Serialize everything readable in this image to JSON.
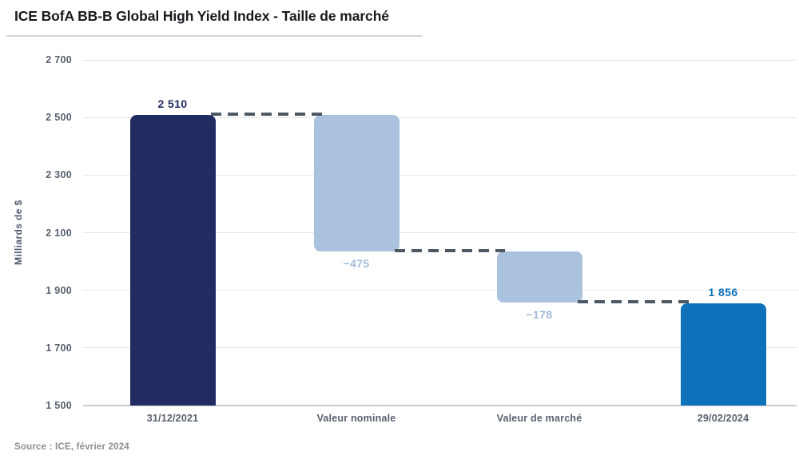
{
  "page": {
    "title": "ICE BofA BB-B Global High Yield Index - Taille de marché",
    "source": "Source : ICE, février 2024"
  },
  "chart_data": {
    "type": "bar",
    "subtype": "waterfall",
    "title": "ICE BofA BB-B Global High Yield Index - Taille de marché",
    "ylabel": "Milliards de $",
    "xlabel": "",
    "ylim": [
      1500,
      2700
    ],
    "grid": true,
    "legend": false,
    "yticks": [
      {
        "value": 2700,
        "label": "2 700"
      },
      {
        "value": 2500,
        "label": "2 500"
      },
      {
        "value": 2300,
        "label": "2 300"
      },
      {
        "value": 2100,
        "label": "2 100"
      },
      {
        "value": 1900,
        "label": "1 900"
      },
      {
        "value": 1700,
        "label": "1 700"
      },
      {
        "value": 1500,
        "label": "1 500"
      }
    ],
    "categories": [
      "31/12/2021",
      "Valeur nominale",
      "Valeur de marché",
      "29/02/2024"
    ],
    "bars": [
      {
        "category": "31/12/2021",
        "role": "total",
        "start": 1500,
        "end": 2510,
        "value": 2510,
        "value_label": "2 510",
        "label_position": "above",
        "color": "#212c62",
        "label_color": "#212c62"
      },
      {
        "category": "Valeur nominale",
        "role": "decrease",
        "start": 2510,
        "end": 2035,
        "value": -475,
        "value_label": "−475",
        "label_position": "below",
        "color": "#aac2dd",
        "label_color": "#a2bcda"
      },
      {
        "category": "Valeur de marché",
        "role": "decrease",
        "start": 2035,
        "end": 1857,
        "value": -178,
        "value_label": "−178",
        "label_position": "below",
        "color": "#aac2dd",
        "label_color": "#a2bcda"
      },
      {
        "category": "29/02/2024",
        "role": "total",
        "start": 1500,
        "end": 1856,
        "value": 1856,
        "value_label": "1 856",
        "label_position": "above",
        "color": "#0d72ba",
        "label_color": "#0d72ba"
      }
    ],
    "connectors": [
      {
        "level": 2510,
        "from_bar": 0,
        "to_bar": 1
      },
      {
        "level": 2035,
        "from_bar": 1,
        "to_bar": 2
      },
      {
        "level": 1857,
        "from_bar": 2,
        "to_bar": 3
      }
    ],
    "colors": {
      "connector": "#4d5964",
      "gridline": "#e4e6e9",
      "axis_line": "#c9ccd0",
      "tick_label": "#57606e",
      "y_axis_title": "#4e5a6e",
      "title": "#17191e",
      "source": "#8d8d8d",
      "background": "#ffffff"
    }
  }
}
